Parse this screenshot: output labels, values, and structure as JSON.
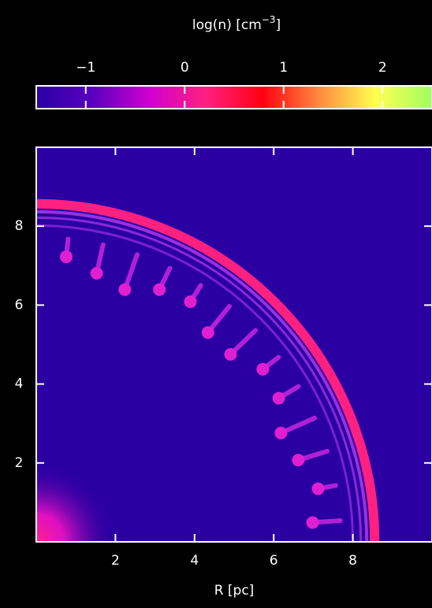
{
  "chart_data": {
    "type": "heatmap",
    "xlabel": "R [pc]",
    "xlim": [
      0,
      10
    ],
    "ylim": [
      0,
      10
    ],
    "xticks": [
      2,
      4,
      6,
      8
    ],
    "yticks": [
      2,
      4,
      6,
      8
    ],
    "background": "#2b00a3",
    "colorbar": {
      "label": "log(n) [cm",
      "label_exponent": "−3",
      "label_end": "]",
      "lim": [
        -1.5,
        2.5
      ],
      "ticks": [
        {
          "value": -1,
          "label": "−1"
        },
        0,
        1,
        2
      ],
      "colors": [
        "#2b00a3",
        "#5a00c0",
        "#d000d0",
        "#ff2080",
        "#ff0010",
        "#ff8a40",
        "#ffff50",
        "#a0ff60"
      ]
    }
  }
}
